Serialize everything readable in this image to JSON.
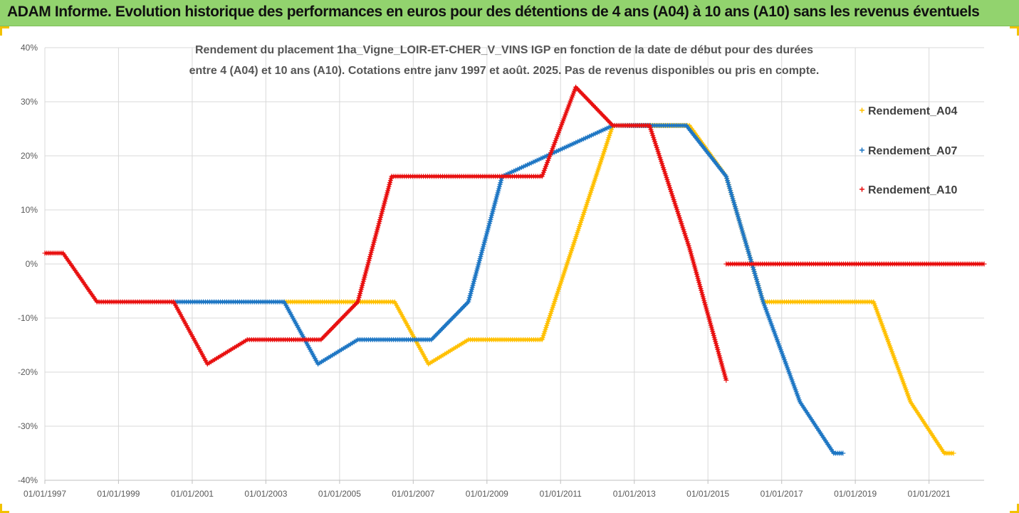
{
  "banner": {
    "title": "ADAM Informe. Evolution historique des performances en euros pour des détentions de 4 ans (A04) à 10 ans (A10) sans les revenus éventuels",
    "background": "#92d36e"
  },
  "chart_data": {
    "type": "scatter",
    "title_lines": [
      "Rendement du placement 1ha_Vigne_LOIR-ET-CHER_V_VINS IGP en fonction de la date de début pour des durées",
      "entre 4 (A04) et 10 ans (A10). Cotations entre janv 1997 et août. 2025. Pas de revenus disponibles ou pris en compte."
    ],
    "xlabel": "",
    "ylabel": "",
    "x_axis": {
      "type": "date",
      "range": [
        "1997-01-01",
        "2022-07-01"
      ],
      "tick_labels": [
        "01/01/1997",
        "01/01/1999",
        "01/01/2001",
        "01/01/2003",
        "01/01/2005",
        "01/01/2007",
        "01/01/2009",
        "01/01/2011",
        "01/01/2013",
        "01/01/2015",
        "01/01/2017",
        "01/01/2019",
        "01/01/2021"
      ]
    },
    "y_axis": {
      "range": [
        -40,
        40
      ],
      "unit": "%",
      "tick_labels": [
        "40%",
        "30%",
        "20%",
        "10%",
        "0%",
        "-10%",
        "-20%",
        "-30%",
        "-40%"
      ]
    },
    "grid": true,
    "legend_position": "right",
    "marker": "plus",
    "series": [
      {
        "name": "Rendement_A04",
        "color": "#ffc000",
        "points": [
          [
            "2003-07-01",
            -7
          ],
          [
            "2006-07-01",
            -7
          ],
          [
            "2007-06-01",
            -18.5
          ],
          [
            "2008-07-01",
            -14
          ],
          [
            "2010-07-01",
            -14
          ],
          [
            "2012-06-01",
            25.6
          ],
          [
            "2013-06-01",
            25.6
          ],
          [
            "2014-07-01",
            25.6
          ],
          [
            "2015-07-01",
            16.2
          ],
          [
            "2016-07-01",
            -7
          ],
          [
            "2019-07-01",
            -7
          ],
          [
            "2020-07-01",
            -25.5
          ],
          [
            "2021-06-01",
            -35
          ],
          [
            "2021-09-01",
            -35
          ]
        ]
      },
      {
        "name": "Rendement_A07",
        "color": "#1f77c4",
        "points": [
          [
            "2000-07-01",
            -7
          ],
          [
            "2003-07-01",
            -7
          ],
          [
            "2004-06-01",
            -18.5
          ],
          [
            "2005-07-01",
            -14
          ],
          [
            "2007-07-01",
            -14
          ],
          [
            "2008-07-01",
            -7
          ],
          [
            "2009-06-01",
            16.2
          ],
          [
            "2012-06-01",
            25.6
          ],
          [
            "2014-06-01",
            25.6
          ],
          [
            "2015-07-01",
            16.2
          ],
          [
            "2016-07-01",
            -7
          ],
          [
            "2017-07-01",
            -25.5
          ],
          [
            "2018-06-01",
            -35
          ],
          [
            "2018-09-01",
            -35
          ]
        ]
      },
      {
        "name": "Rendement_A10",
        "color": "#e81010",
        "segments": [
          [
            [
              "1997-01-01",
              2
            ],
            [
              "1997-07-01",
              2
            ],
            [
              "1998-06-01",
              -7
            ],
            [
              "2000-07-01",
              -7
            ],
            [
              "2001-06-01",
              -18.5
            ],
            [
              "2002-07-01",
              -14
            ],
            [
              "2004-07-01",
              -14
            ],
            [
              "2005-07-01",
              -7
            ],
            [
              "2006-06-01",
              16.2
            ],
            [
              "2010-07-01",
              16.2
            ],
            [
              "2011-06-01",
              32.7
            ],
            [
              "2012-06-01",
              25.6
            ],
            [
              "2013-06-01",
              25.6
            ],
            [
              "2014-07-01",
              3
            ],
            [
              "2015-07-01",
              -21.5
            ]
          ],
          [
            [
              "2015-07-01",
              0
            ],
            [
              "2022-07-01",
              0
            ]
          ]
        ]
      }
    ]
  }
}
